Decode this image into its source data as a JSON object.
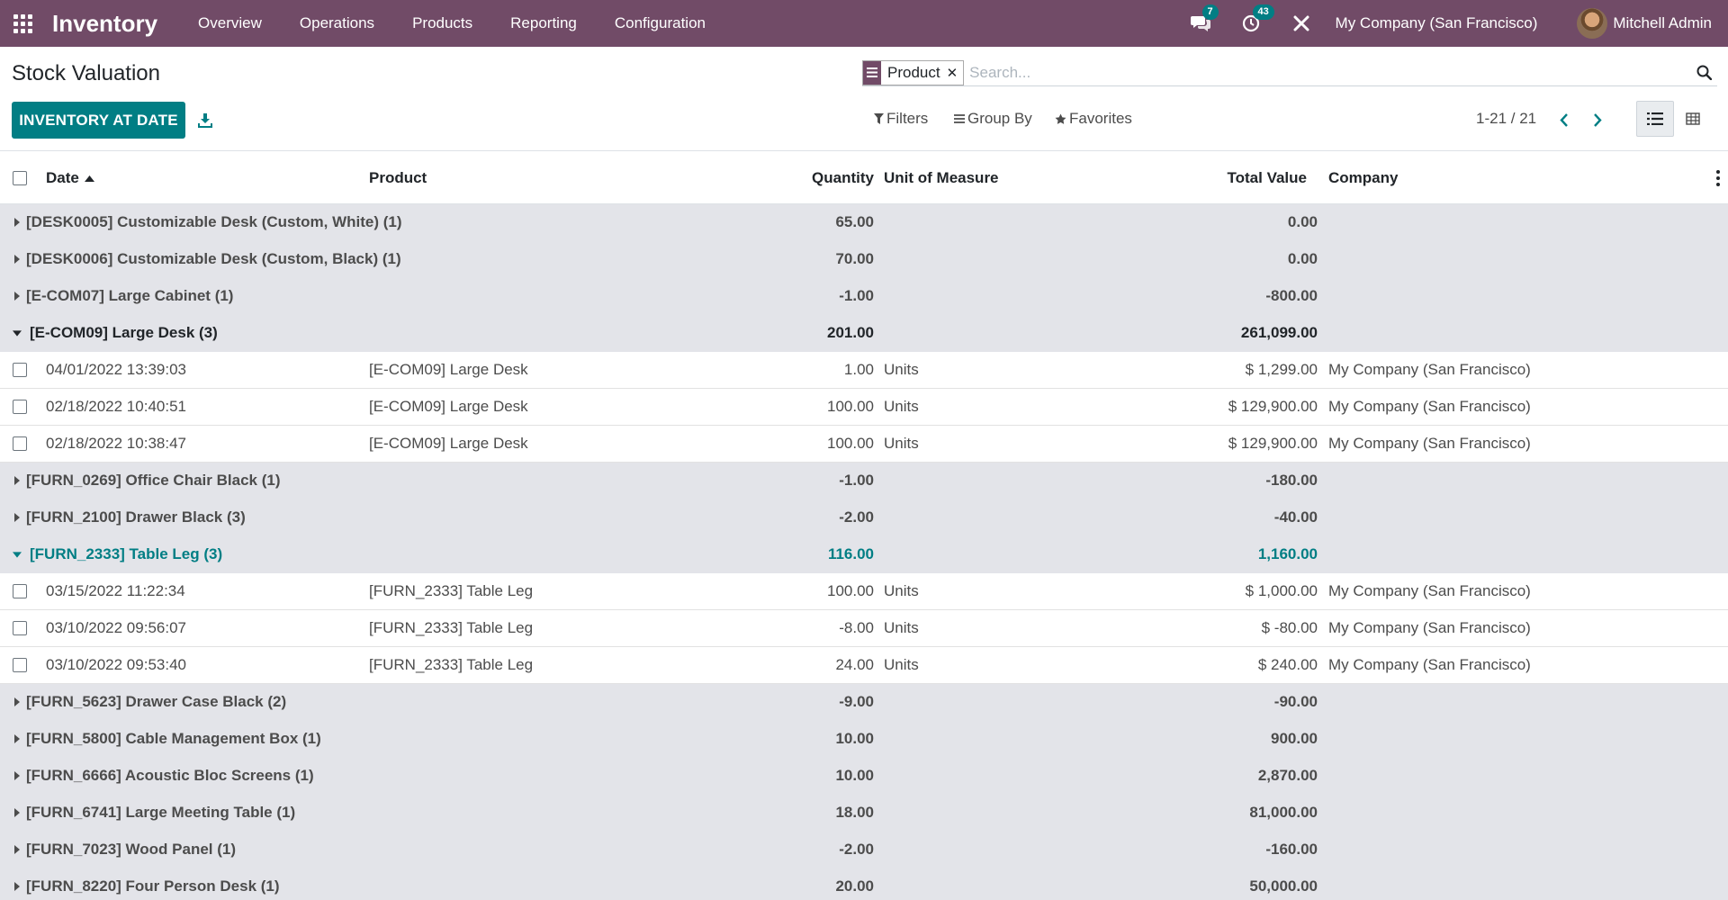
{
  "navbar": {
    "brand": "Inventory",
    "menus": [
      "Overview",
      "Operations",
      "Products",
      "Reporting",
      "Configuration"
    ],
    "messages_badge": "7",
    "activities_badge": "43",
    "company": "My Company (San Francisco)",
    "user": "Mitchell Admin",
    "color": "#714b67"
  },
  "control_panel": {
    "title": "Stock Valuation",
    "primary_button": "INVENTORY AT DATE",
    "facet_value": "Product",
    "search_placeholder": "Search...",
    "filters_label": "Filters",
    "group_by_label": "Group By",
    "favorites_label": "Favorites",
    "pager": "1-21 / 21",
    "accent_color": "#017e84"
  },
  "table": {
    "columns": {
      "date": "Date",
      "product": "Product",
      "quantity": "Quantity",
      "uom": "Unit of Measure",
      "total_value": "Total Value",
      "company": "Company"
    },
    "groups": [
      {
        "label": "[DESK0005] Customizable Desk (Custom, White) (1)",
        "qty": "65.00",
        "value": "0.00",
        "open": false
      },
      {
        "label": "[DESK0006] Customizable Desk (Custom, Black) (1)",
        "qty": "70.00",
        "value": "0.00",
        "open": false
      },
      {
        "label": "[E-COM07] Large Cabinet (1)",
        "qty": "-1.00",
        "value": "-800.00",
        "open": false
      },
      {
        "label": "[E-COM09] Large Desk (3)",
        "qty": "201.00",
        "value": "261,099.00",
        "open": true,
        "records": [
          {
            "date": "04/01/2022 13:39:03",
            "product": "[E-COM09] Large Desk",
            "qty": "1.00",
            "uom": "Units",
            "value": "$ 1,299.00",
            "company": "My Company (San Francisco)"
          },
          {
            "date": "02/18/2022 10:40:51",
            "product": "[E-COM09] Large Desk",
            "qty": "100.00",
            "uom": "Units",
            "value": "$ 129,900.00",
            "company": "My Company (San Francisco)"
          },
          {
            "date": "02/18/2022 10:38:47",
            "product": "[E-COM09] Large Desk",
            "qty": "100.00",
            "uom": "Units",
            "value": "$ 129,900.00",
            "company": "My Company (San Francisco)"
          }
        ]
      },
      {
        "label": "[FURN_0269] Office Chair Black (1)",
        "qty": "-1.00",
        "value": "-180.00",
        "open": false
      },
      {
        "label": "[FURN_2100] Drawer Black (3)",
        "qty": "-2.00",
        "value": "-40.00",
        "open": false
      },
      {
        "label": "[FURN_2333] Table Leg (3)",
        "qty": "116.00",
        "value": "1,160.00",
        "open": true,
        "highlight": true,
        "records": [
          {
            "date": "03/15/2022 11:22:34",
            "product": "[FURN_2333] Table Leg",
            "qty": "100.00",
            "uom": "Units",
            "value": "$ 1,000.00",
            "company": "My Company (San Francisco)"
          },
          {
            "date": "03/10/2022 09:56:07",
            "product": "[FURN_2333] Table Leg",
            "qty": "-8.00",
            "uom": "Units",
            "value": "$ -80.00",
            "company": "My Company (San Francisco)"
          },
          {
            "date": "03/10/2022 09:53:40",
            "product": "[FURN_2333] Table Leg",
            "qty": "24.00",
            "uom": "Units",
            "value": "$ 240.00",
            "company": "My Company (San Francisco)"
          }
        ]
      },
      {
        "label": "[FURN_5623] Drawer Case Black (2)",
        "qty": "-9.00",
        "value": "-90.00",
        "open": false
      },
      {
        "label": "[FURN_5800] Cable Management Box (1)",
        "qty": "10.00",
        "value": "900.00",
        "open": false
      },
      {
        "label": "[FURN_6666] Acoustic Bloc Screens (1)",
        "qty": "10.00",
        "value": "2,870.00",
        "open": false
      },
      {
        "label": "[FURN_6741] Large Meeting Table (1)",
        "qty": "18.00",
        "value": "81,000.00",
        "open": false
      },
      {
        "label": "[FURN_7023] Wood Panel (1)",
        "qty": "-2.00",
        "value": "-160.00",
        "open": false
      },
      {
        "label": "[FURN_8220] Four Person Desk (1)",
        "qty": "20.00",
        "value": "50,000.00",
        "open": false
      }
    ]
  }
}
